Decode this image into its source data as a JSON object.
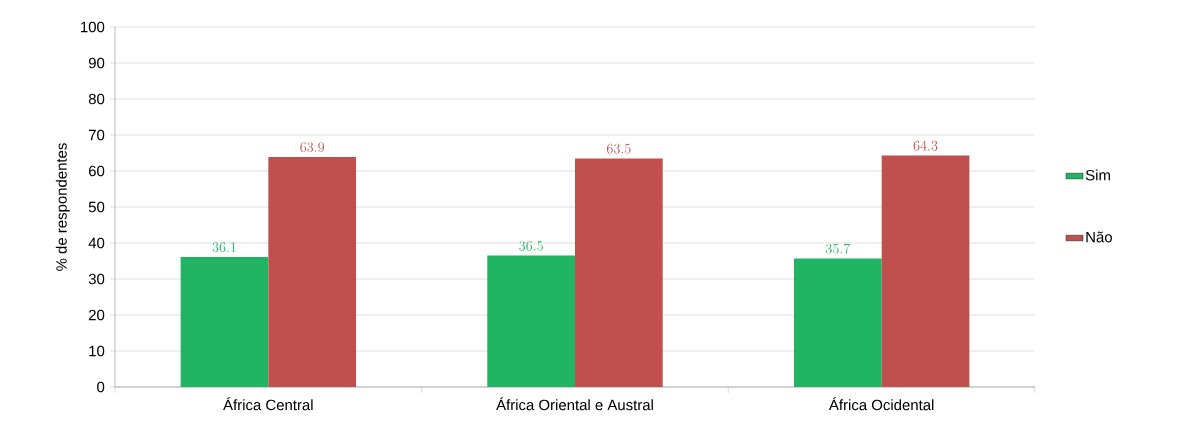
{
  "chart_data": {
    "type": "bar",
    "categories": [
      "África Central",
      "África Oriental e Austral",
      "África Ocidental"
    ],
    "ylabel": "% de respondentes",
    "series": [
      {
        "name": "Sim",
        "color": "#21b462",
        "values": [
          36.1,
          36.5,
          35.7
        ]
      },
      {
        "name": "Não",
        "color": "#c0504d",
        "values": [
          63.9,
          63.5,
          64.3
        ]
      }
    ],
    "ylim": [
      0,
      100
    ],
    "yticks": [
      0,
      10,
      20,
      30,
      40,
      50,
      60,
      70,
      80,
      90,
      100
    ],
    "grid": "y",
    "legend": "right",
    "data_labels": true
  }
}
